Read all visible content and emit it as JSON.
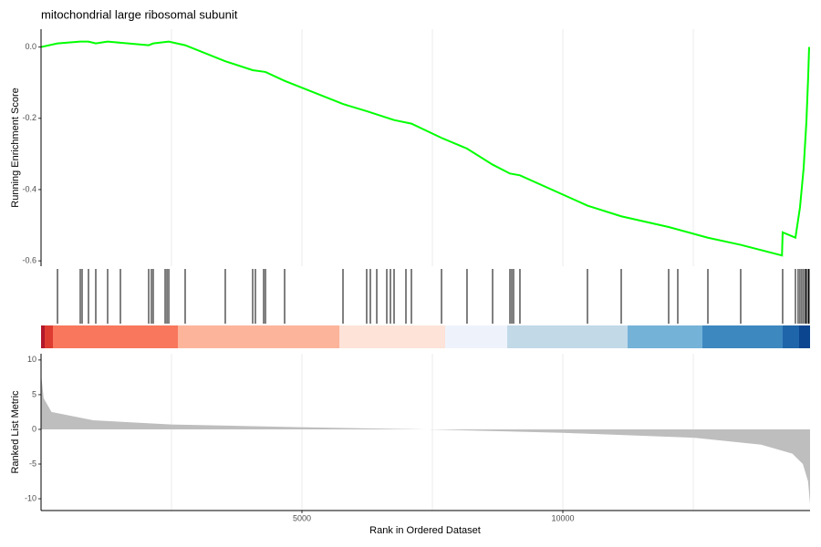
{
  "chart_data": [
    {
      "type": "line",
      "title": "mitochondrial large ribosomal subunit",
      "ylabel": "Running Enrichment Score",
      "color": "#00ff00",
      "x": [
        0,
        315,
        752,
        909,
        1049,
        1276,
        1521,
        2063,
        2150,
        2448,
        2762,
        3531,
        4056,
        4301,
        4668,
        5787,
        6241,
        6766,
        7098,
        7675,
        8164,
        8654,
        8986,
        9178,
        10472,
        11119,
        12028,
        12780,
        13409,
        14200,
        14213,
        14458,
        14545,
        14615,
        14668,
        14703,
        14720
      ],
      "values": [
        0.0,
        0.01,
        0.015,
        0.015,
        0.01,
        0.015,
        0.012,
        0.005,
        0.01,
        0.015,
        0.005,
        -0.04,
        -0.065,
        -0.07,
        -0.095,
        -0.16,
        -0.18,
        -0.205,
        -0.215,
        -0.255,
        -0.285,
        -0.33,
        -0.355,
        -0.36,
        -0.445,
        -0.475,
        -0.505,
        -0.535,
        -0.555,
        -0.585,
        -0.52,
        -0.535,
        -0.45,
        -0.34,
        -0.21,
        -0.08,
        0.0
      ],
      "xlim": [
        0,
        14738
      ],
      "ylim": [
        -0.615,
        0.05
      ],
      "yticks": [
        {
          "value": 0,
          "label": "0.0"
        },
        -0.2,
        -0.4,
        -0.6
      ],
      "xgrid": [
        2500,
        5000,
        7500,
        10000,
        12500
      ]
    },
    {
      "type": "rug",
      "color": "#000000",
      "xlim": [
        0,
        14738
      ],
      "x": [
        315,
        752,
        787,
        909,
        1049,
        1276,
        1521,
        2063,
        2115,
        2150,
        2378,
        2413,
        2448,
        2762,
        3531,
        4056,
        4108,
        4266,
        4301,
        4668,
        5787,
        6241,
        6311,
        6434,
        6626,
        6696,
        6766,
        6993,
        7098,
        7675,
        8164,
        8654,
        8986,
        9021,
        9056,
        9178,
        10472,
        11119,
        12028,
        12203,
        12780,
        13409,
        14213,
        14458,
        14510,
        14545,
        14580,
        14615,
        14650,
        14668,
        14703,
        14720
      ]
    },
    {
      "type": "area",
      "xlabel": "Rank in Ordered Dataset",
      "ylabel": "Ranked List Metric",
      "color": "#bebebe",
      "x": [
        0,
        50,
        200,
        1000,
        2500,
        5000,
        7400,
        10000,
        12500,
        13800,
        14400,
        14600,
        14700,
        14738
      ],
      "values": [
        8,
        4.5,
        2.5,
        1.3,
        0.7,
        0.3,
        0,
        -0.5,
        -1.2,
        -2.2,
        -3.5,
        -5,
        -7.5,
        -10.8
      ],
      "xlim": [
        0,
        14738
      ],
      "ylim": [
        -11.7,
        10.9
      ],
      "yticks": [
        -10,
        -5,
        0,
        5,
        10
      ],
      "xticks": [
        5000,
        10000
      ],
      "xgrid": [
        2500,
        5000,
        7500,
        10000,
        12500
      ]
    }
  ]
}
